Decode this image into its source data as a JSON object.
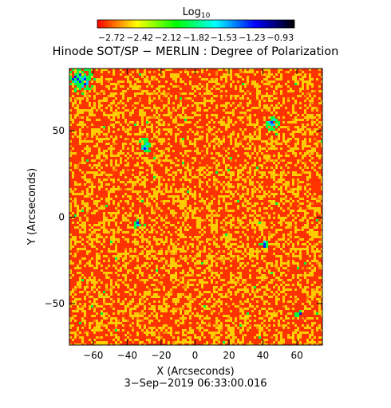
{
  "chart_data": {
    "type": "heatmap",
    "title": "Hinode SOT/SP − MERLIN : Degree of Polarization",
    "colorbar": {
      "label": "Log",
      "label_subscript": "10",
      "ticks": [
        "−2.72",
        "−2.42",
        "−2.12",
        "−1.82",
        "−1.53",
        "−1.23",
        "−0.93"
      ],
      "range": [
        -2.87,
        -0.78
      ],
      "colormap": [
        "#ff0000",
        "#ffff00",
        "#00ff00",
        "#00ffff",
        "#0000ff",
        "#000000"
      ]
    },
    "xlabel": "X (Arcseconds)",
    "ylabel": "Y (Arcseconds)",
    "xlim": [
      -74,
      75
    ],
    "ylim": [
      -74,
      86
    ],
    "xticks": [
      -60,
      -40,
      -20,
      0,
      20,
      40,
      60
    ],
    "yticks": [
      -50,
      0,
      50
    ],
    "xtick_labels": [
      "−60",
      "−40",
      "−20",
      "0",
      "20",
      "40",
      "60"
    ],
    "ytick_labels": [
      "−50",
      "0",
      "50"
    ],
    "timestamp": "3−Sep−2019 06:33:00.016",
    "map_description": {
      "dominant_color": "#ff3300",
      "secondary_color": "#ffcc00",
      "sparse_colors": [
        "#00ff40",
        "#00c8ff",
        "#0020ff"
      ],
      "features": [
        {
          "x": -68,
          "y": 80,
          "strength": "high"
        },
        {
          "x": -30,
          "y": 42,
          "strength": "medium"
        },
        {
          "x": 45,
          "y": 55,
          "strength": "medium"
        },
        {
          "x": -35,
          "y": -3,
          "strength": "low"
        },
        {
          "x": 40,
          "y": -15,
          "strength": "low"
        },
        {
          "x": 60,
          "y": -55,
          "strength": "low"
        }
      ]
    }
  }
}
